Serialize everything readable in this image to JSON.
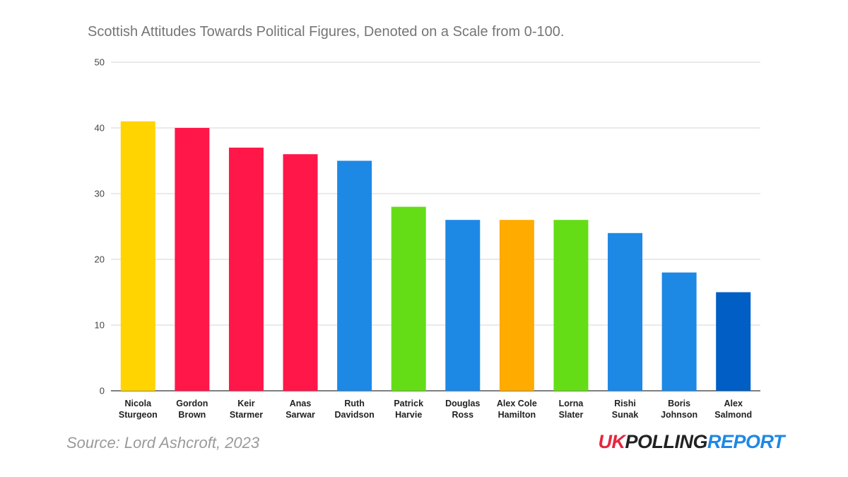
{
  "chart_data": {
    "type": "bar",
    "title": "Scottish Attitudes Towards Political Figures, Denoted on a Scale from 0-100.",
    "xlabel": "",
    "ylabel": "",
    "ylim": [
      0,
      50
    ],
    "yticks": [
      0,
      10,
      20,
      30,
      40,
      50
    ],
    "grid": true,
    "legend": "none",
    "categories": [
      [
        "Nicola",
        "Sturgeon"
      ],
      [
        "Gordon",
        "Brown"
      ],
      [
        "Keir",
        "Starmer"
      ],
      [
        "Anas",
        "Sarwar"
      ],
      [
        "Ruth",
        "Davidson"
      ],
      [
        "Patrick",
        "Harvie"
      ],
      [
        "Douglas",
        "Ross"
      ],
      [
        "Alex Cole",
        "Hamilton"
      ],
      [
        "Lorna",
        "Slater"
      ],
      [
        "Rishi",
        "Sunak"
      ],
      [
        "Boris",
        "Johnson"
      ],
      [
        "Alex",
        "Salmond"
      ]
    ],
    "values": [
      41,
      40,
      37,
      36,
      35,
      28,
      26,
      26,
      26,
      24,
      18,
      15
    ],
    "colors": [
      "#FFD400",
      "#FF1749",
      "#FF1749",
      "#FF1749",
      "#1E88E5",
      "#64DD17",
      "#1E88E5",
      "#FFAB00",
      "#64DD17",
      "#1E88E5",
      "#1E88E5",
      "#005EC4"
    ]
  },
  "footer": {
    "source": "Source: Lord Ashcroft, 2023",
    "logo_part1": "UK",
    "logo_part2": "POLLING",
    "logo_part3": "REPORT",
    "logo_color1": "#E8253F",
    "logo_color2": "#222222",
    "logo_color3": "#1E88E5"
  }
}
